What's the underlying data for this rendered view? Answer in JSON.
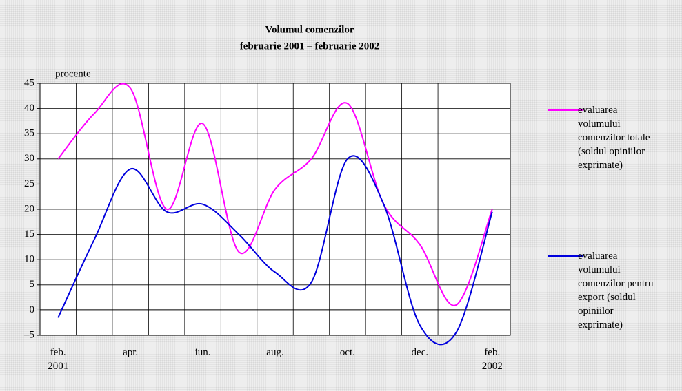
{
  "chart_data": {
    "type": "line",
    "title": [
      "Volumul comenzilor",
      "februarie 2001 – februarie 2002"
    ],
    "ylabel": "procente",
    "categories": [
      "feb. 2001",
      null,
      "apr.",
      null,
      "iun.",
      null,
      "aug.",
      null,
      "oct.",
      null,
      "dec.",
      null,
      "feb. 2002"
    ],
    "series": [
      {
        "name": "evaluarea volumului comenzilor totale (soldul opiniilor exprimate)",
        "color": "#ff00ff",
        "values": [
          30,
          39,
          44,
          20,
          37,
          11.5,
          24,
          30,
          41,
          21,
          13,
          1,
          20
        ]
      },
      {
        "name": "evaluarea volumului comenzilor pentru export (soldul opiniilor exprimate)",
        "color": "#0000dd",
        "values": [
          -1.5,
          14,
          28,
          19.5,
          21,
          15,
          7.5,
          5.5,
          30,
          21,
          -3,
          -4.5,
          19.5
        ]
      }
    ],
    "ylim": [
      -5,
      45
    ],
    "yticks": [
      {
        "value": -5,
        "label": "–5"
      },
      0,
      5,
      10,
      15,
      20,
      25,
      30,
      35,
      40,
      45
    ],
    "grid": true,
    "legend": "right"
  }
}
